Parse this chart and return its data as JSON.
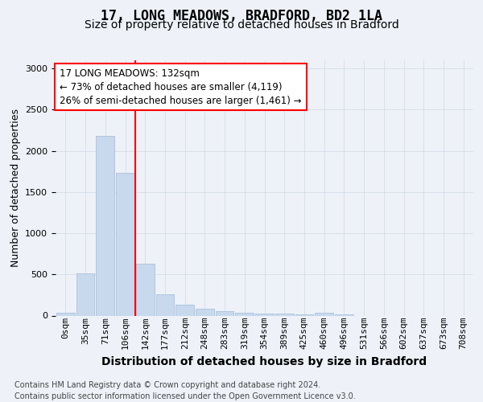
{
  "title1": "17, LONG MEADOWS, BRADFORD, BD2 1LA",
  "title2": "Size of property relative to detached houses in Bradford",
  "xlabel": "Distribution of detached houses by size in Bradford",
  "ylabel": "Number of detached properties",
  "bar_labels": [
    "0sqm",
    "35sqm",
    "71sqm",
    "106sqm",
    "142sqm",
    "177sqm",
    "212sqm",
    "248sqm",
    "283sqm",
    "319sqm",
    "354sqm",
    "389sqm",
    "425sqm",
    "460sqm",
    "496sqm",
    "531sqm",
    "566sqm",
    "602sqm",
    "637sqm",
    "673sqm",
    "708sqm"
  ],
  "bar_values": [
    30,
    515,
    2185,
    1735,
    625,
    260,
    130,
    80,
    50,
    35,
    25,
    20,
    15,
    30,
    10,
    0,
    0,
    0,
    0,
    0,
    0
  ],
  "bar_color": "#c8d9ee",
  "bar_edge_color": "#a8c0dc",
  "grid_color": "#d4dce8",
  "vline_color": "red",
  "ylim": [
    0,
    3100
  ],
  "yticks": [
    0,
    500,
    1000,
    1500,
    2000,
    2500,
    3000
  ],
  "annotation_text": "17 LONG MEADOWS: 132sqm\n← 73% of detached houses are smaller (4,119)\n26% of semi-detached houses are larger (1,461) →",
  "annotation_box_color": "white",
  "annotation_box_edge": "red",
  "footnote": "Contains HM Land Registry data © Crown copyright and database right 2024.\nContains public sector information licensed under the Open Government Licence v3.0.",
  "background_color": "#eef2f8",
  "title1_fontsize": 12,
  "title2_fontsize": 10,
  "xlabel_fontsize": 10,
  "ylabel_fontsize": 9,
  "tick_fontsize": 8,
  "footnote_fontsize": 7,
  "annotation_fontsize": 8.5
}
